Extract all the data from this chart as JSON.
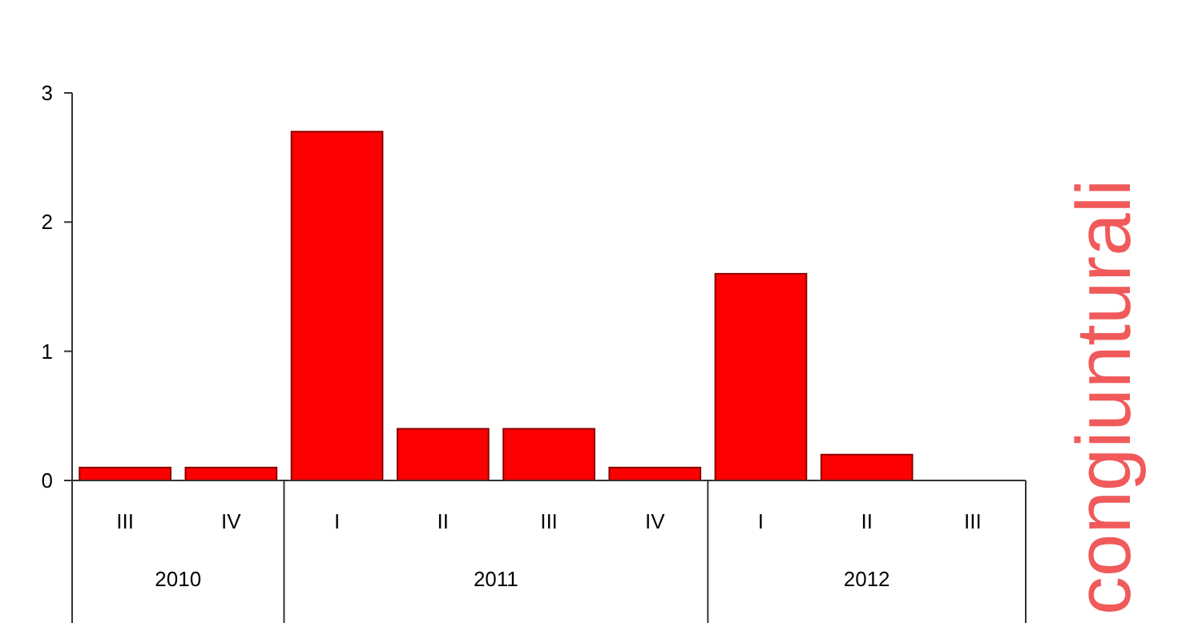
{
  "chart_data": {
    "type": "bar",
    "categories": [
      "III",
      "IV",
      "I",
      "II",
      "III",
      "IV",
      "I",
      "II",
      "III"
    ],
    "values": [
      0.1,
      0.1,
      2.7,
      0.4,
      0.4,
      0.1,
      1.6,
      0.2,
      null
    ],
    "color": "#ff0000",
    "ylim": [
      0,
      3
    ],
    "yticks": [
      0,
      1,
      2,
      3
    ],
    "grid": false,
    "annotations": [
      "2010",
      "2011",
      "2012",
      "congiunturali"
    ]
  }
}
